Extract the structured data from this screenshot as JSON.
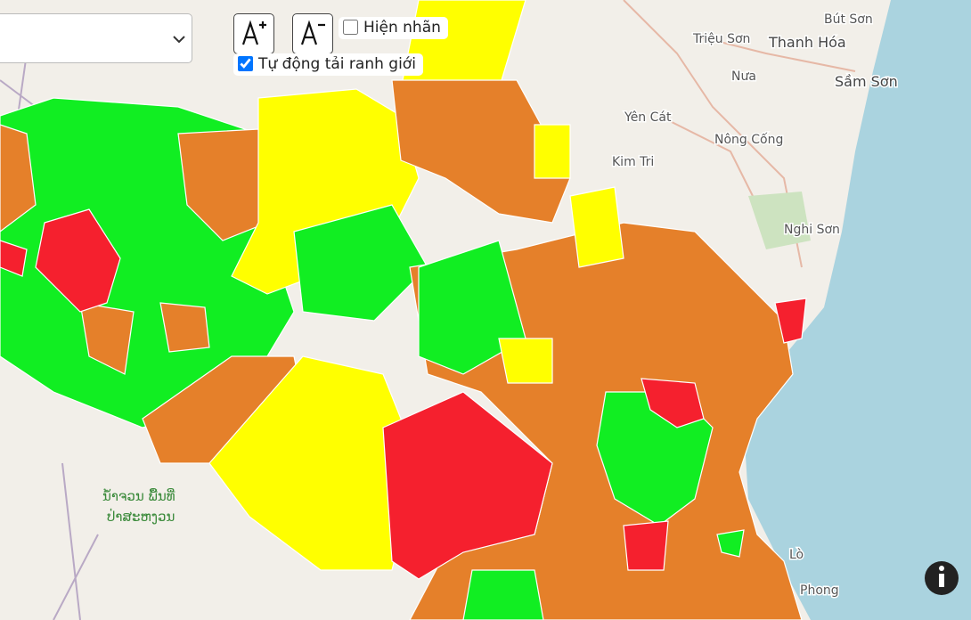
{
  "controls": {
    "show_labels": {
      "label": "Hiện nhãn",
      "checked": false
    },
    "auto_load_boundaries": {
      "label": "Tự động tải ranh giới",
      "checked": true
    }
  },
  "map": {
    "labels": [
      {
        "text": "Bút Sơn"
      },
      {
        "text": "Triệu Sơn"
      },
      {
        "text": "Thanh Hóa"
      },
      {
        "text": "Nưa"
      },
      {
        "text": "Sầm Sơn"
      },
      {
        "text": "Yên Cát"
      },
      {
        "text": "Nông Cống"
      },
      {
        "text": "Kim Tri"
      },
      {
        "text": "Nghi Sơn"
      },
      {
        "text": "Lò"
      },
      {
        "text": "Phong"
      },
      {
        "text": "ນ້ຳຈວນ ພື້ນທີ່"
      },
      {
        "text": "ປ່າສະຫງວນ"
      }
    ]
  }
}
